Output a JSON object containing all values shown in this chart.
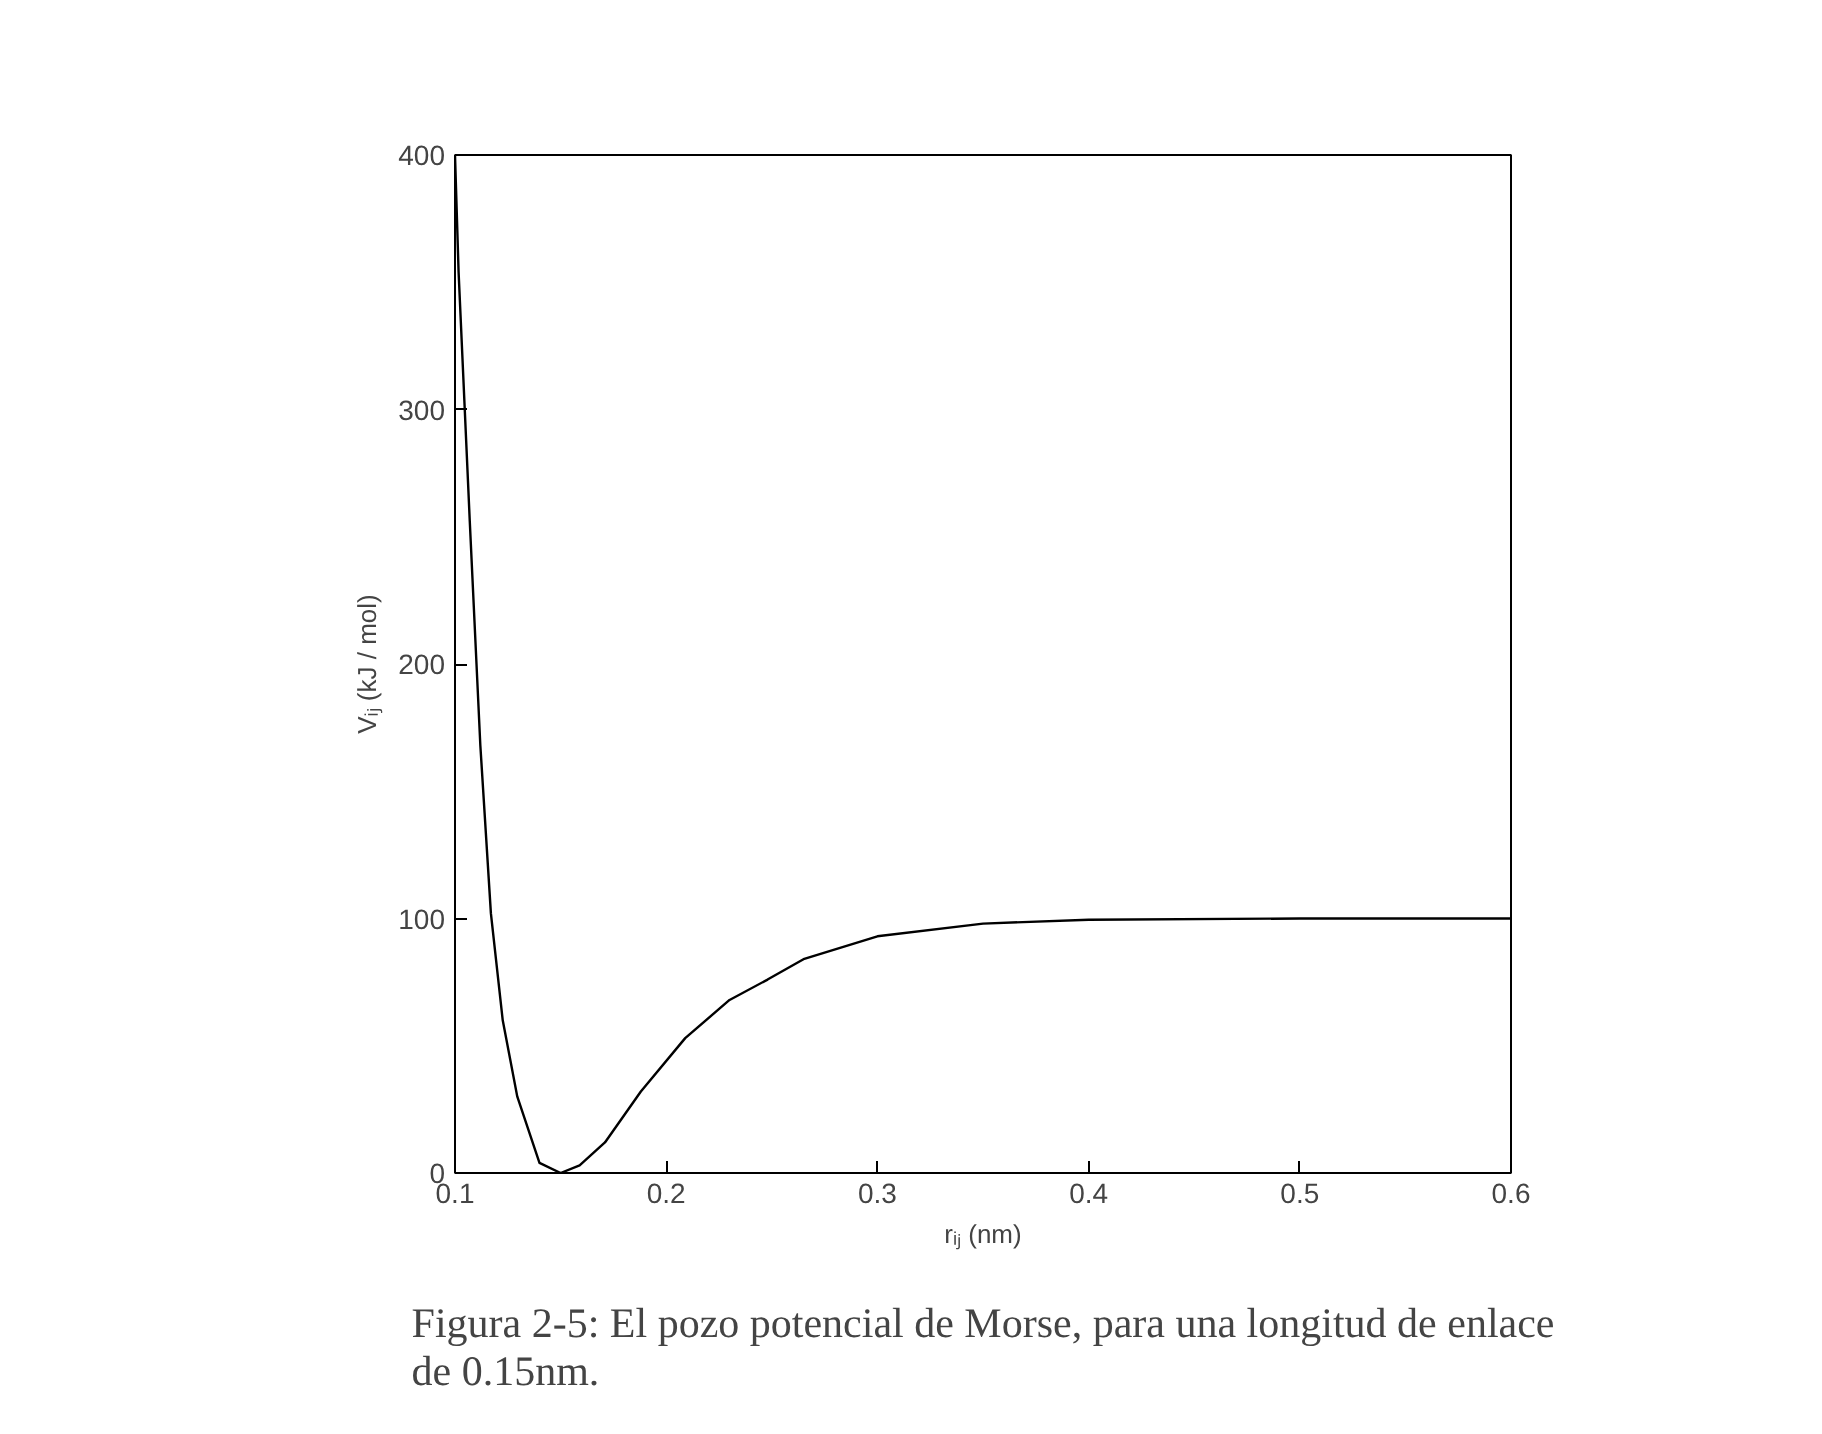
{
  "chart_data": {
    "type": "line",
    "xlabel": "rᵢⱼ (nm)",
    "ylabel": "Vᵢⱼ (kJ / mol)",
    "x": [
      0.1,
      0.1017,
      0.107,
      0.112,
      0.117,
      0.1226,
      0.1295,
      0.14,
      0.15,
      0.159,
      0.171,
      0.188,
      0.209,
      0.23,
      0.248,
      0.265,
      0.3,
      0.35,
      0.4,
      0.5,
      0.6
    ],
    "series": [
      {
        "color": "#000000",
        "values": [
          400,
          354,
          256,
          168,
          102,
          60,
          30,
          4,
          0,
          3,
          12,
          32,
          53,
          68,
          76,
          84,
          93,
          98,
          99.5,
          100,
          100
        ]
      }
    ],
    "xlim": [
      0.1,
      0.6
    ],
    "ylim": [
      0,
      400
    ],
    "xticks": [
      0.1,
      0.2,
      0.3,
      0.4,
      0.5,
      0.6
    ],
    "yticks": [
      0,
      100,
      200,
      300,
      400
    ],
    "grid": false,
    "marker": "none",
    "line_style": "solid",
    "annotations": [
      "Figura 2-5: El pozo potencial de Morse, para una longitud de enlace de 0.15nm."
    ]
  }
}
